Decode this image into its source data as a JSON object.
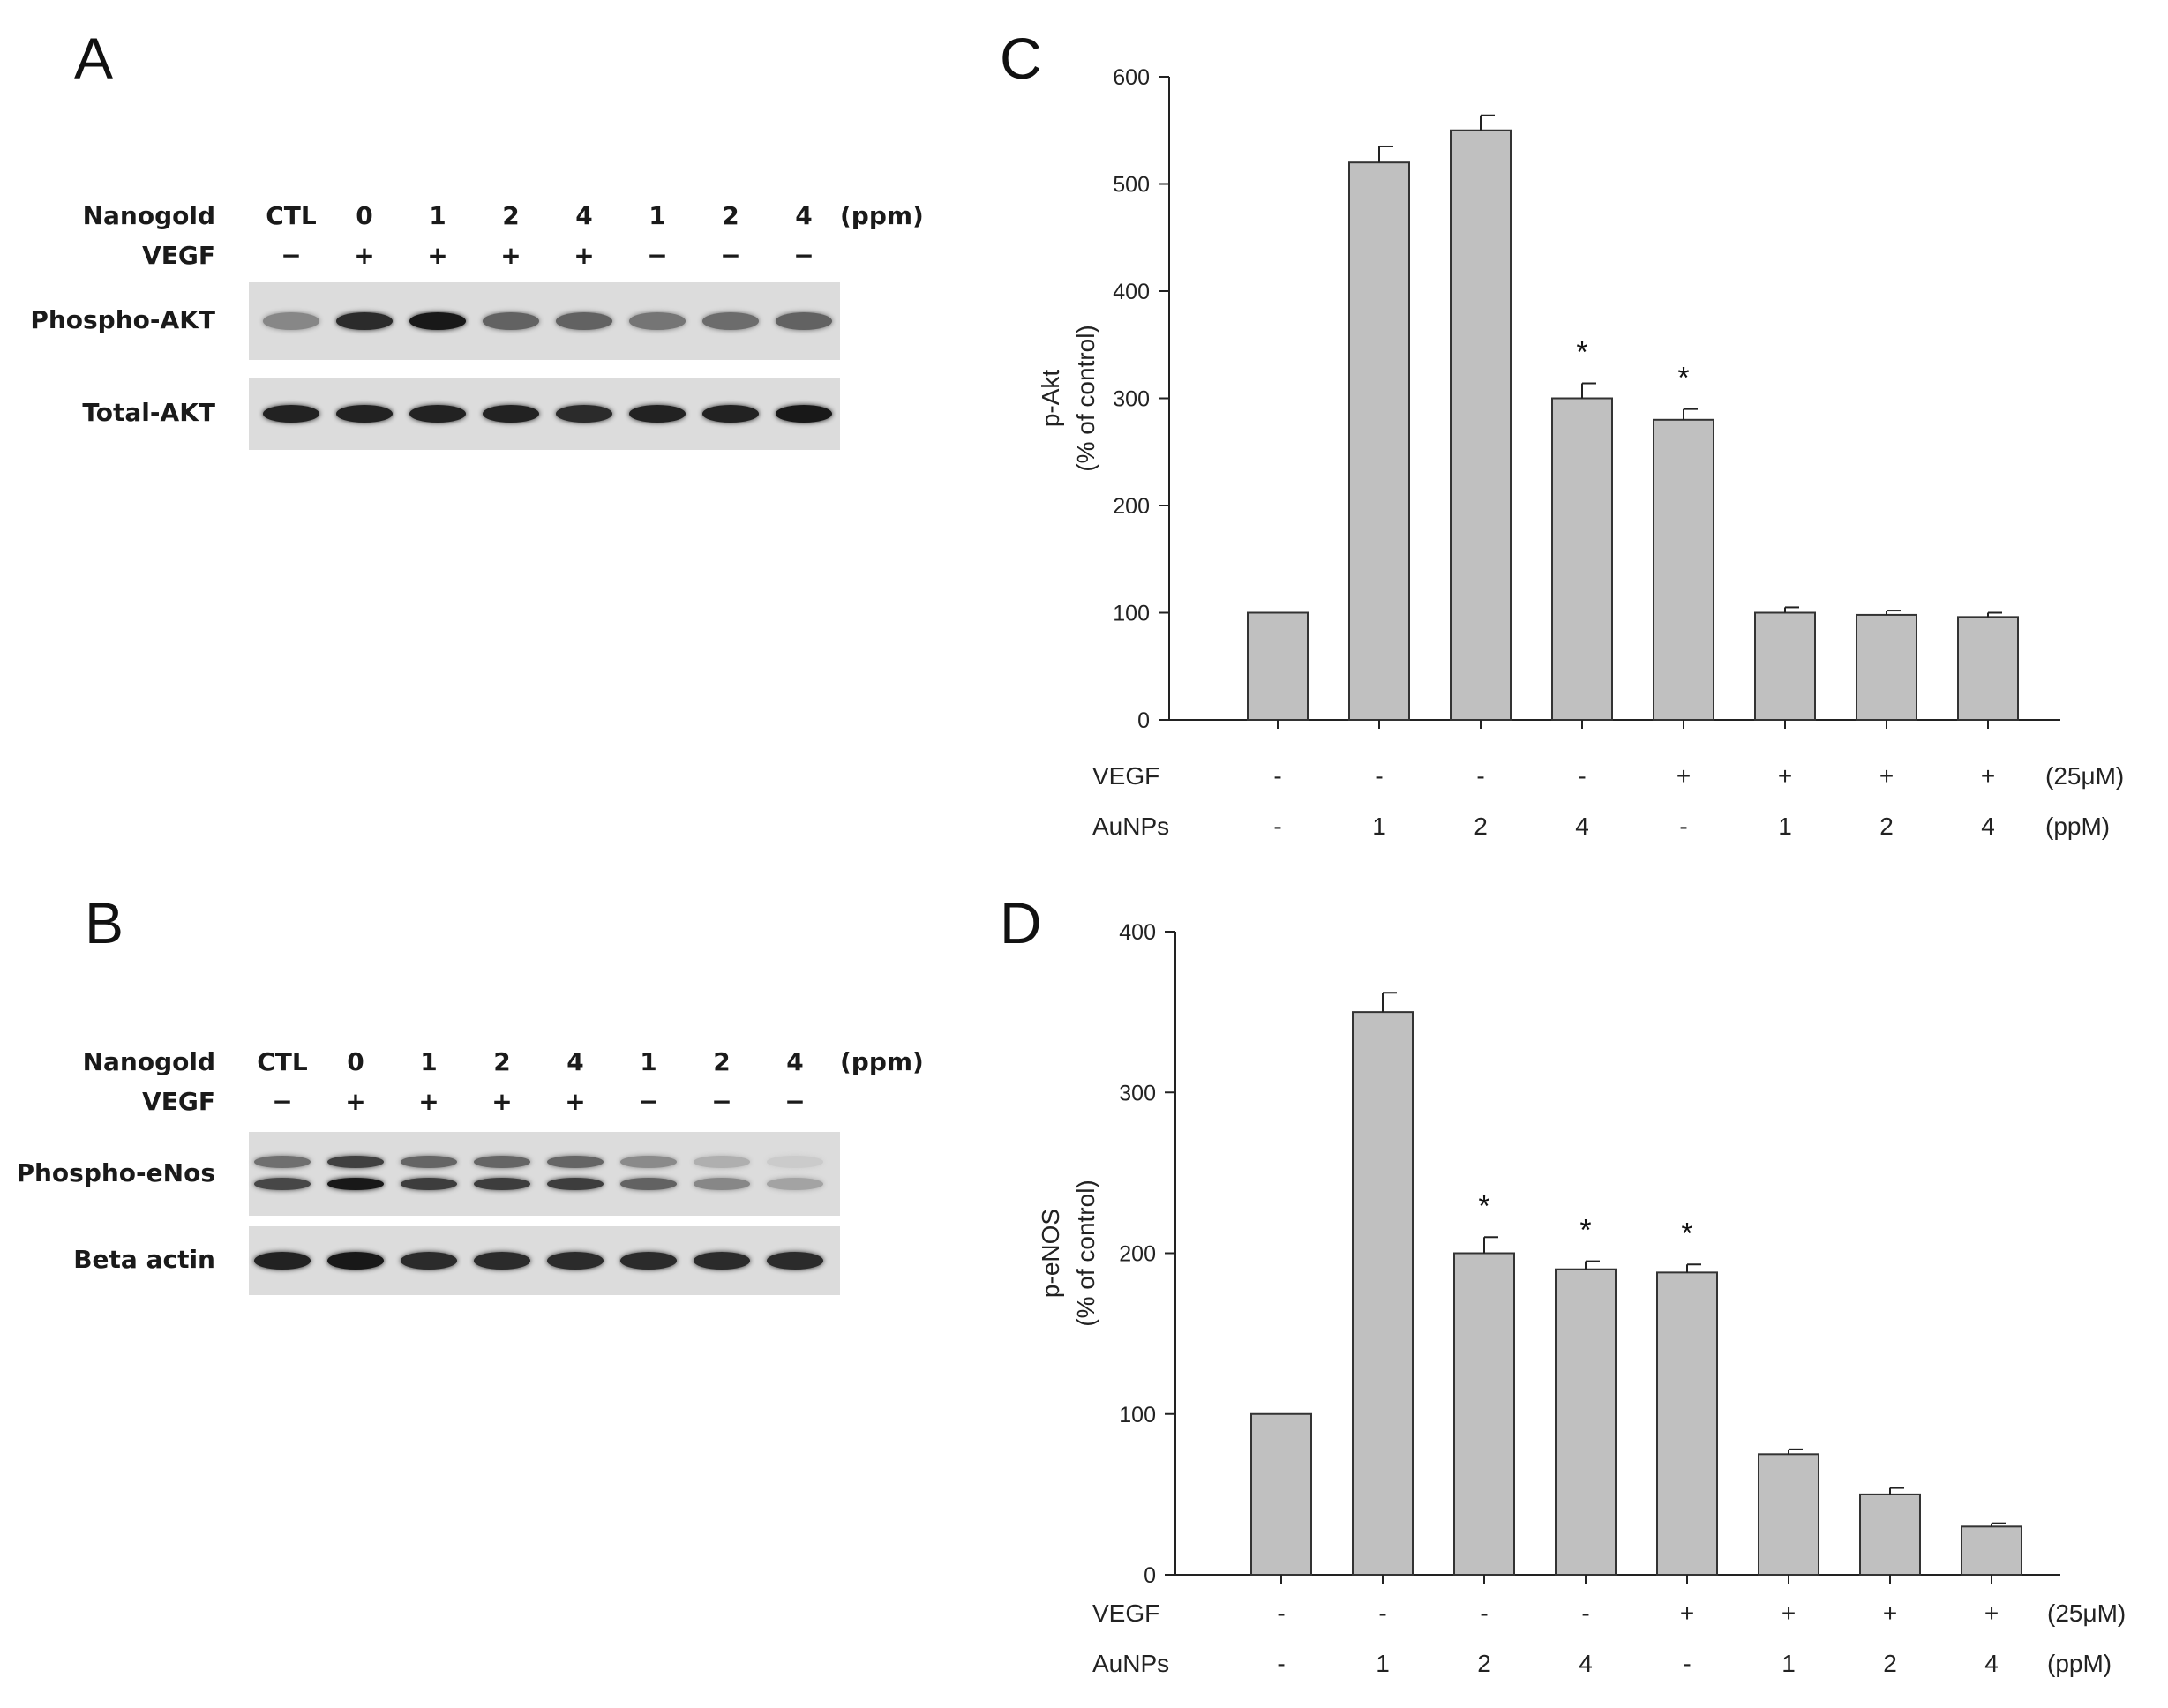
{
  "panels": {
    "a": "A",
    "b": "B",
    "c": "C",
    "d": "D"
  },
  "blot_a": {
    "row1_label": "Nanogold",
    "row2_label": "VEGF",
    "lanes": [
      "CTL",
      "0",
      "1",
      "2",
      "4",
      "1",
      "2",
      "4"
    ],
    "unit": "(ppm)",
    "vegf": [
      "−",
      "+",
      "+",
      "+",
      "+",
      "−",
      "−",
      "−"
    ],
    "blots": [
      {
        "label": "Phospho-AKT",
        "intensity": [
          0.35,
          0.85,
          0.95,
          0.55,
          0.55,
          0.45,
          0.5,
          0.55
        ]
      },
      {
        "label": "Total-AKT",
        "intensity": [
          0.9,
          0.9,
          0.9,
          0.9,
          0.85,
          0.9,
          0.9,
          0.95
        ]
      }
    ]
  },
  "blot_b": {
    "row1_label": "Nanogold",
    "row2_label": "VEGF",
    "lanes": [
      "CTL",
      "0",
      "1",
      "2",
      "4",
      "1",
      "2",
      "4"
    ],
    "unit": "(ppm)",
    "vegf": [
      "−",
      "+",
      "+",
      "+",
      "+",
      "−",
      "−",
      "−"
    ],
    "blots": [
      {
        "label": "Phospho-eNos",
        "intensity": [
          0.7,
          0.95,
          0.75,
          0.75,
          0.75,
          0.55,
          0.35,
          0.2
        ]
      },
      {
        "label": "Beta actin",
        "intensity": [
          0.9,
          0.95,
          0.85,
          0.85,
          0.85,
          0.85,
          0.85,
          0.85
        ]
      }
    ]
  },
  "chart_data": [
    {
      "type": "bar",
      "ylabel_line1": "p-Akt",
      "ylabel_line2": "(% of control)",
      "ylim": [
        0,
        600
      ],
      "yticks": [
        0,
        100,
        200,
        300,
        400,
        500,
        600
      ],
      "values": [
        100,
        520,
        550,
        300,
        280,
        100,
        98,
        96
      ],
      "errors": [
        0,
        15,
        14,
        14,
        10,
        5,
        4,
        4
      ],
      "significant": [
        false,
        false,
        false,
        true,
        true,
        false,
        false,
        false
      ],
      "marker": "*",
      "rows": [
        {
          "label": "VEGF",
          "values": [
            "-",
            "-",
            "-",
            "-",
            "+",
            "+",
            "+",
            "+"
          ],
          "unit": "(25μM)"
        },
        {
          "label": "AuNPs",
          "values": [
            "-",
            "1",
            "2",
            "4",
            "-",
            "1",
            "2",
            "4"
          ],
          "unit": "(ppM)"
        }
      ],
      "bar_color": "#c0c0c0"
    },
    {
      "type": "bar",
      "ylabel_line1": "p-eNOS",
      "ylabel_line2": "(% of control)",
      "ylim": [
        0,
        400
      ],
      "yticks": [
        0,
        100,
        200,
        300,
        400
      ],
      "values": [
        100,
        350,
        200,
        190,
        188,
        75,
        50,
        30
      ],
      "errors": [
        0,
        12,
        10,
        5,
        5,
        3,
        4,
        2
      ],
      "significant": [
        false,
        false,
        true,
        true,
        true,
        false,
        false,
        false
      ],
      "marker": "*",
      "rows": [
        {
          "label": "VEGF",
          "values": [
            "-",
            "-",
            "-",
            "-",
            "+",
            "+",
            "+",
            "+"
          ],
          "unit": "(25μM)"
        },
        {
          "label": "AuNPs",
          "values": [
            "-",
            "1",
            "2",
            "4",
            "-",
            "1",
            "2",
            "4"
          ],
          "unit": "(ppM)"
        }
      ],
      "bar_color": "#c0c0c0"
    }
  ]
}
